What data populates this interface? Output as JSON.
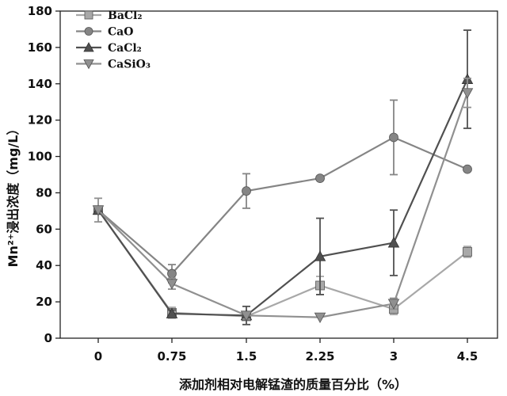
{
  "chart_data": {
    "type": "line",
    "title": "",
    "xlabel": "添加剂相对电解锰渣的质量百分比（%）",
    "ylabel": "Mn²⁺浸出浓度（mg/L）",
    "x_categories": [
      "0",
      "0.75",
      "1.5",
      "2.25",
      "3",
      "4.5"
    ],
    "ylim": [
      0,
      180
    ],
    "yticks": [
      0,
      20,
      40,
      60,
      80,
      100,
      120,
      140,
      160,
      180
    ],
    "grid": false,
    "legend_position": "top-left",
    "series": [
      {
        "name": "BaCl₂",
        "marker": "square",
        "color": "#a8a8a8",
        "values": [
          70.5,
          14,
          12,
          29,
          16,
          47.5
        ],
        "errors": [
          0,
          3,
          2,
          5,
          3,
          3
        ]
      },
      {
        "name": "CaO",
        "marker": "circle",
        "color": "#858585",
        "values": [
          70.5,
          35.5,
          81,
          88,
          110.5,
          93
        ],
        "errors": [
          0,
          5,
          9.5,
          0,
          20.5,
          0
        ]
      },
      {
        "name": "CaCl₂",
        "marker": "triangle-up",
        "color": "#505050",
        "values": [
          70.5,
          13.5,
          12.5,
          45,
          52.5,
          142.5
        ],
        "errors": [
          0,
          2,
          5,
          21,
          18,
          27
        ]
      },
      {
        "name": "CaSiO₃",
        "marker": "triangle-down",
        "color": "#909090",
        "values": [
          70.5,
          30,
          12.5,
          11.5,
          19,
          135
        ],
        "errors": [
          6.5,
          3,
          2,
          0,
          3,
          8
        ]
      }
    ]
  }
}
